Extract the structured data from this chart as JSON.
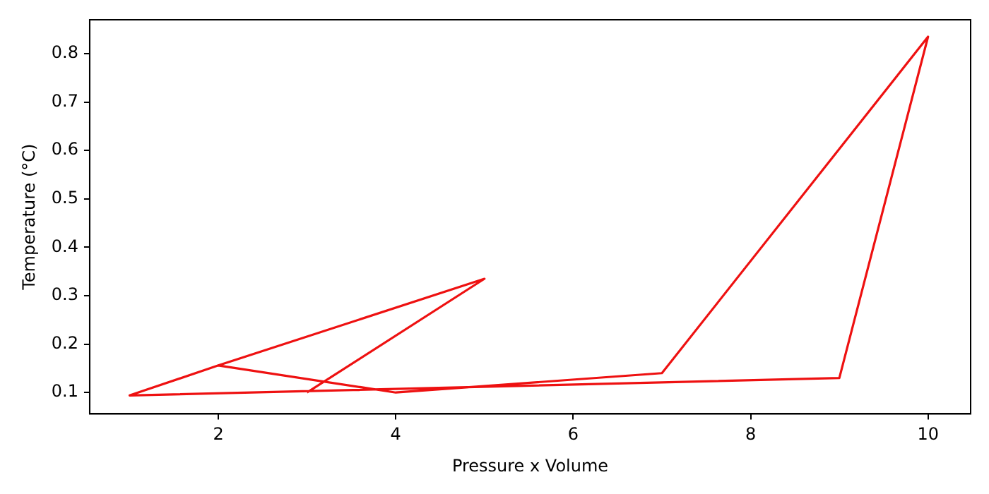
{
  "chart_data": {
    "type": "line",
    "xlabel": "Pressure x Volume",
    "ylabel": "Temperature (°C)",
    "x": [
      3,
      5,
      2,
      4,
      7,
      10,
      9,
      1,
      2
    ],
    "series": [
      {
        "color": "#ee1111",
        "values": [
          0.1,
          0.335,
          0.156,
          0.1,
          0.14,
          0.835,
          0.13,
          0.094,
          0.156
        ]
      }
    ],
    "xlim": [
      0.55,
      10.48
    ],
    "ylim": [
      0.056,
      0.87
    ],
    "xticks": [
      2,
      4,
      6,
      8,
      10
    ],
    "yticks": [
      0.1,
      0.2,
      0.3,
      0.4,
      0.5,
      0.6,
      0.7,
      0.8
    ],
    "grid": false,
    "legend": false,
    "marker": "none",
    "line_style": "solid"
  }
}
